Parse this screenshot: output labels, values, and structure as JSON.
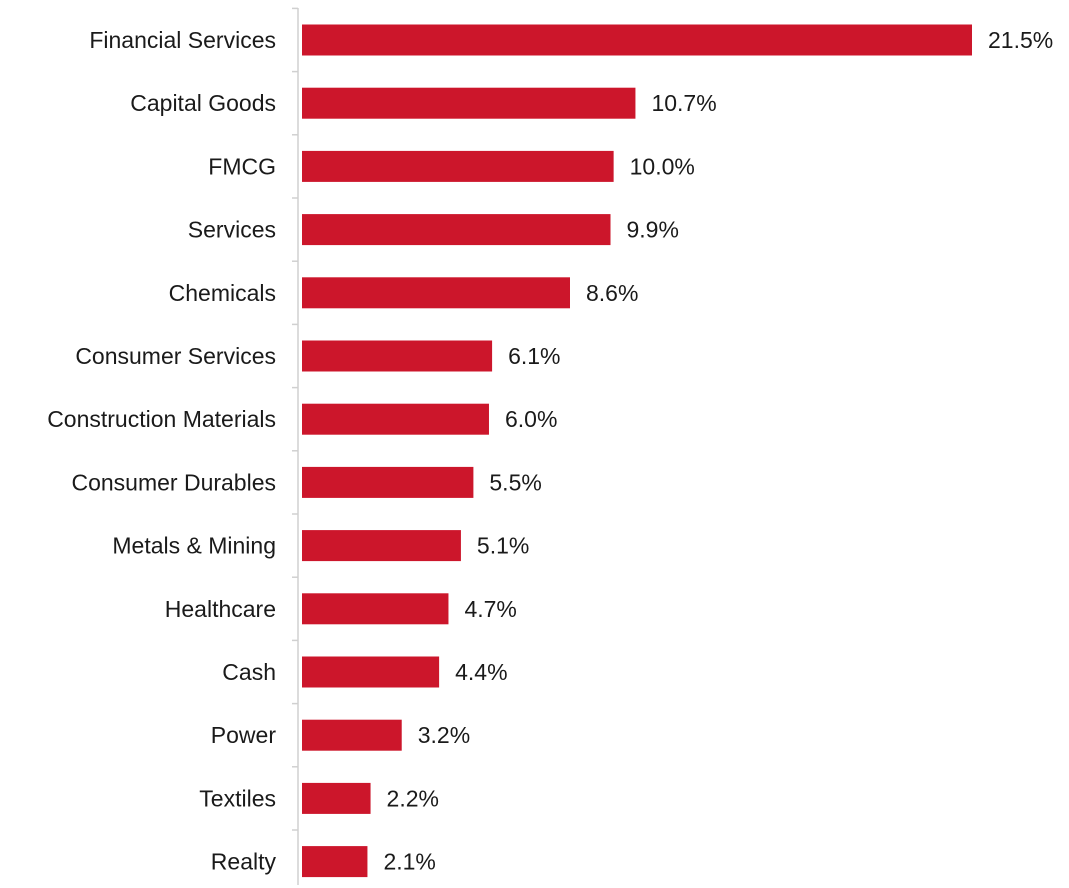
{
  "chart_data": {
    "type": "bar",
    "orientation": "horizontal",
    "categories": [
      "Financial Services",
      "Capital Goods",
      "FMCG",
      "Services",
      "Chemicals",
      "Consumer Services",
      "Construction Materials",
      "Consumer Durables",
      "Metals & Mining",
      "Healthcare",
      "Cash",
      "Power",
      "Textiles",
      "Realty"
    ],
    "values": [
      21.5,
      10.7,
      10.0,
      9.9,
      8.6,
      6.1,
      6.0,
      5.5,
      5.1,
      4.7,
      4.4,
      3.2,
      2.2,
      2.1
    ],
    "value_labels": [
      "21.5%",
      "10.7%",
      "10.0%",
      "9.9%",
      "8.6%",
      "6.1%",
      "6.0%",
      "5.5%",
      "5.1%",
      "4.7%",
      "4.4%",
      "3.2%",
      "2.2%",
      "2.1%"
    ],
    "unit": "%",
    "xlim": [
      0,
      21.5
    ],
    "grid": false,
    "legend": "none",
    "colors": {
      "bar": "#CC162B",
      "axis": "#D0D0D0",
      "text": "#1A1A1A"
    }
  }
}
